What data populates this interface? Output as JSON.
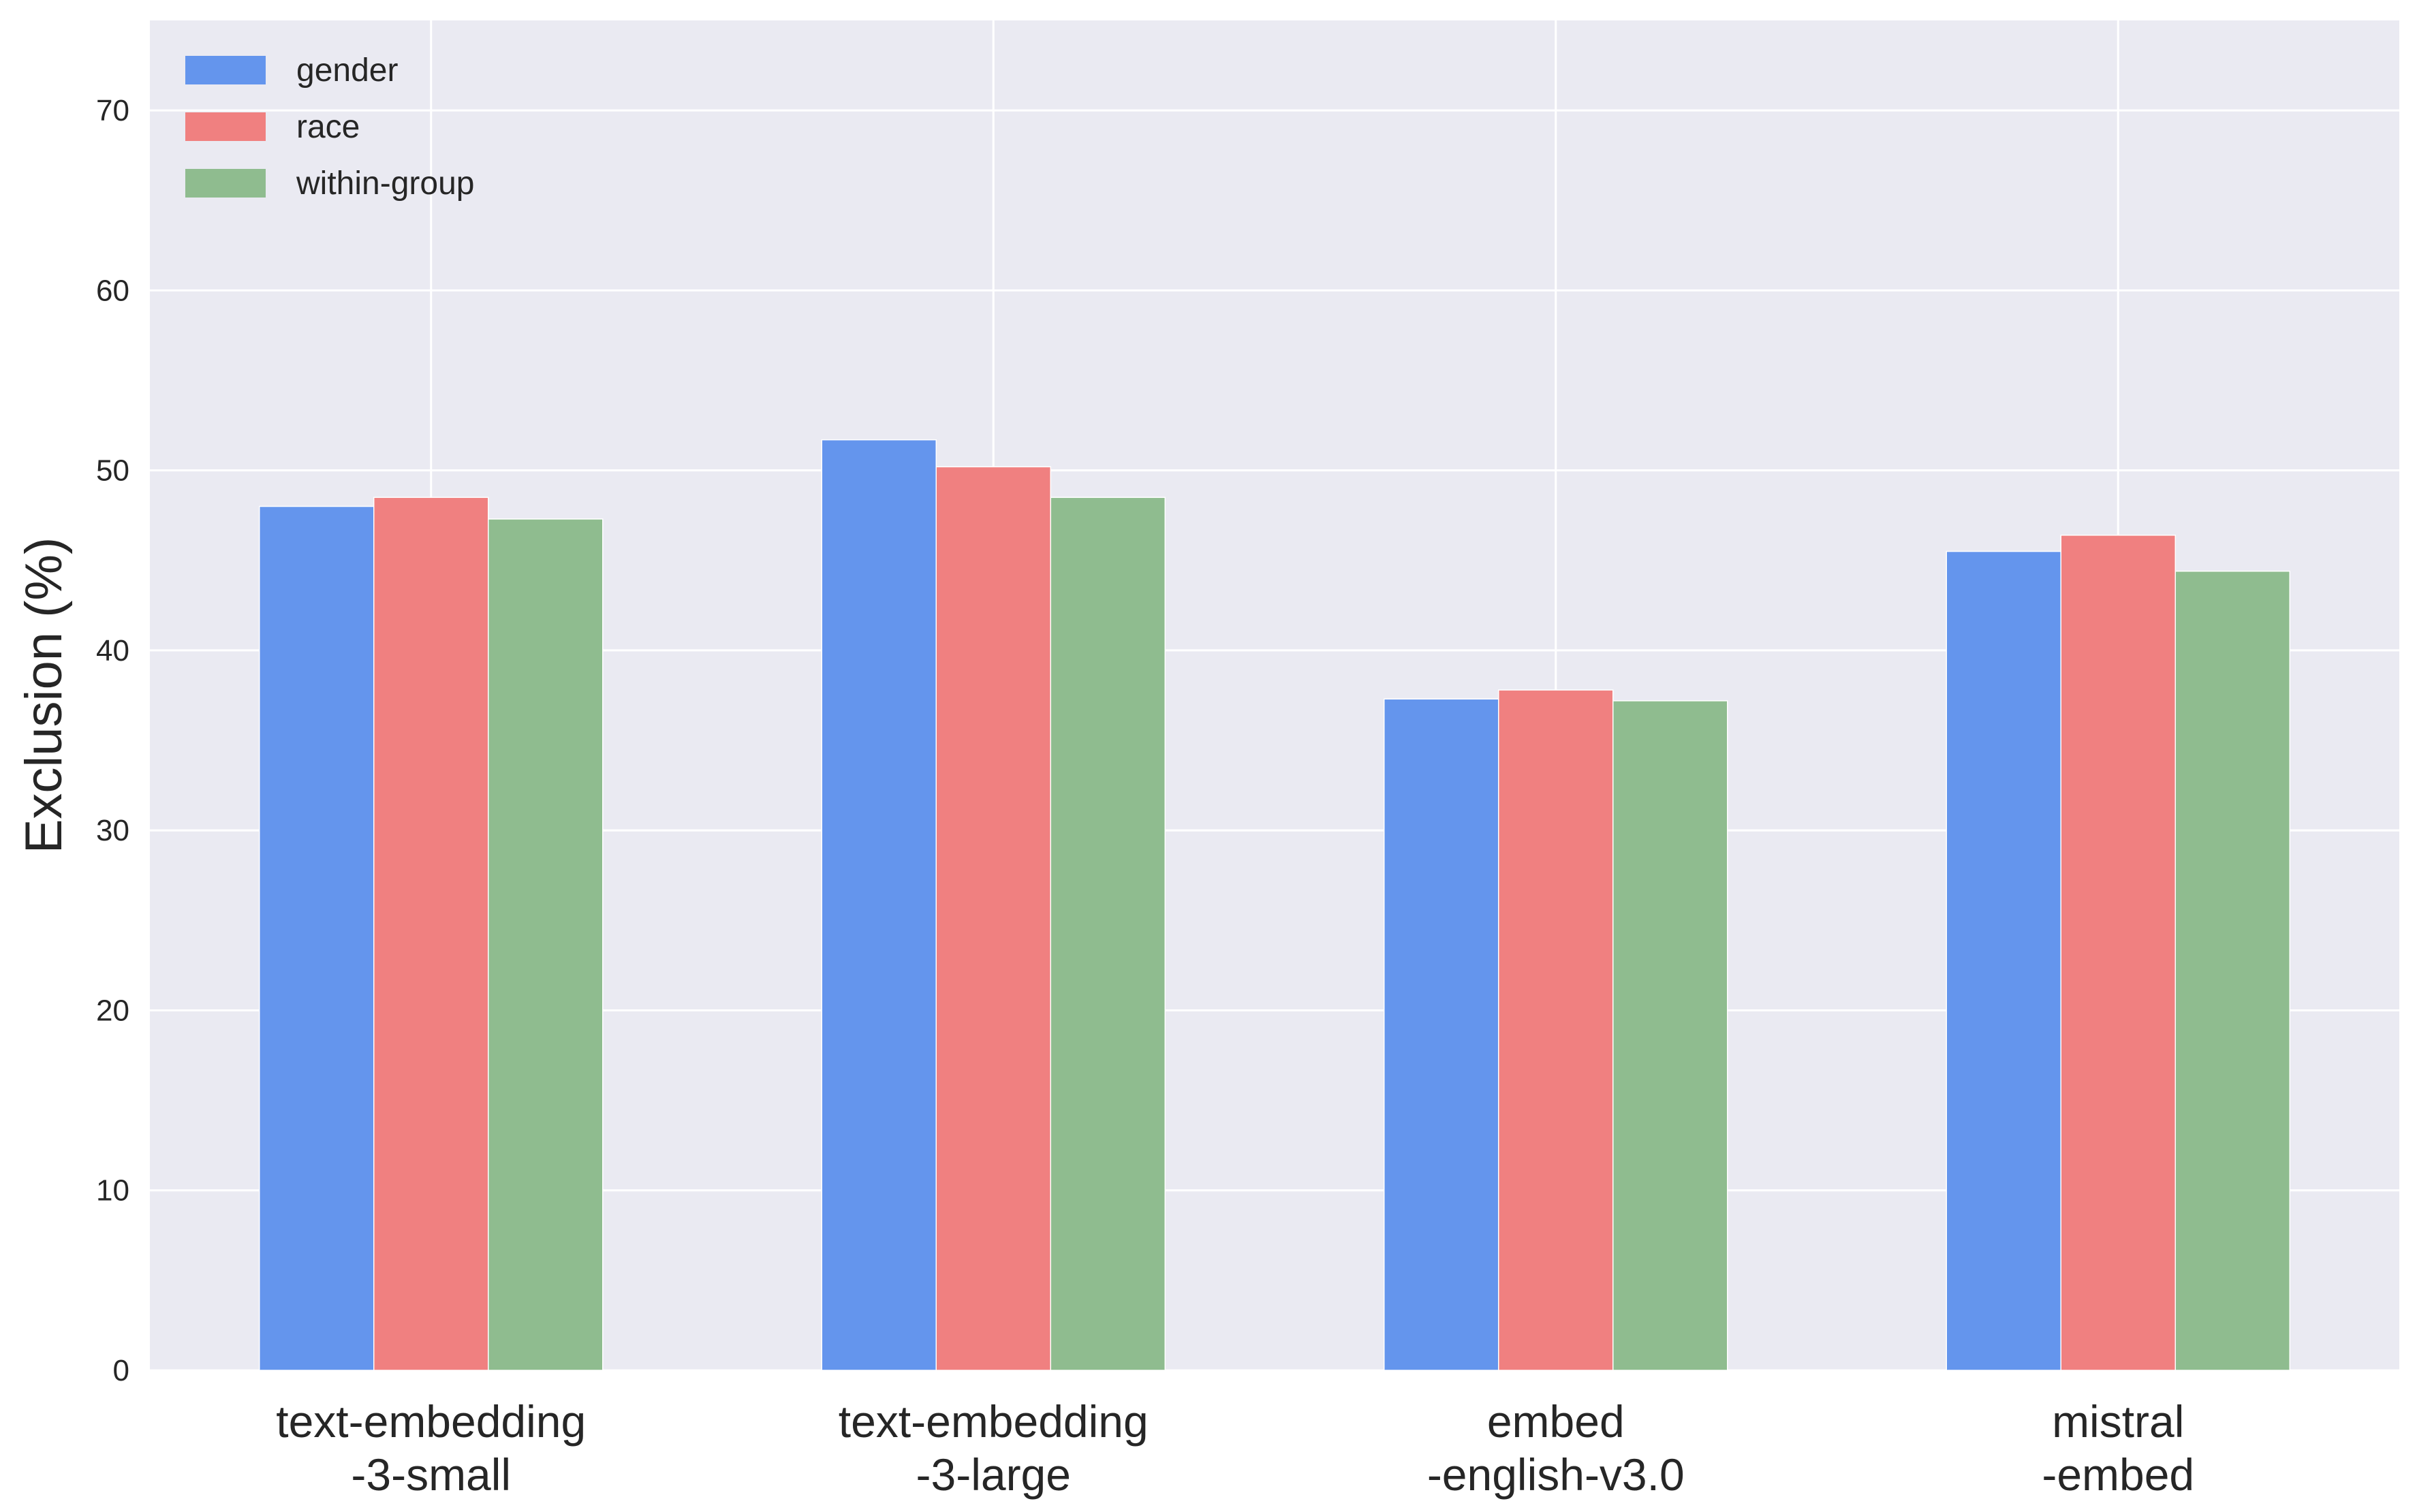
{
  "chart_data": {
    "type": "bar",
    "title": "",
    "xlabel": "",
    "ylabel": "Exclusion (%)",
    "ylim": [
      0,
      75
    ],
    "yticks": [
      0,
      10,
      20,
      30,
      40,
      50,
      60,
      70
    ],
    "grid": true,
    "legend_position": "top-left",
    "categories": [
      [
        "text-embedding",
        "-3-small"
      ],
      [
        "text-embedding",
        "-3-large"
      ],
      [
        "embed",
        "-english-v3.0"
      ],
      [
        "mistral",
        "-embed"
      ]
    ],
    "series": [
      {
        "name": "gender",
        "color": "#6495ED",
        "values": [
          48.0,
          51.7,
          37.3,
          45.5
        ]
      },
      {
        "name": "race",
        "color": "#F08080",
        "values": [
          48.5,
          50.2,
          37.8,
          46.4
        ]
      },
      {
        "name": "within-group",
        "color": "#8FBC8F",
        "values": [
          47.3,
          48.5,
          37.2,
          44.4
        ]
      }
    ]
  }
}
